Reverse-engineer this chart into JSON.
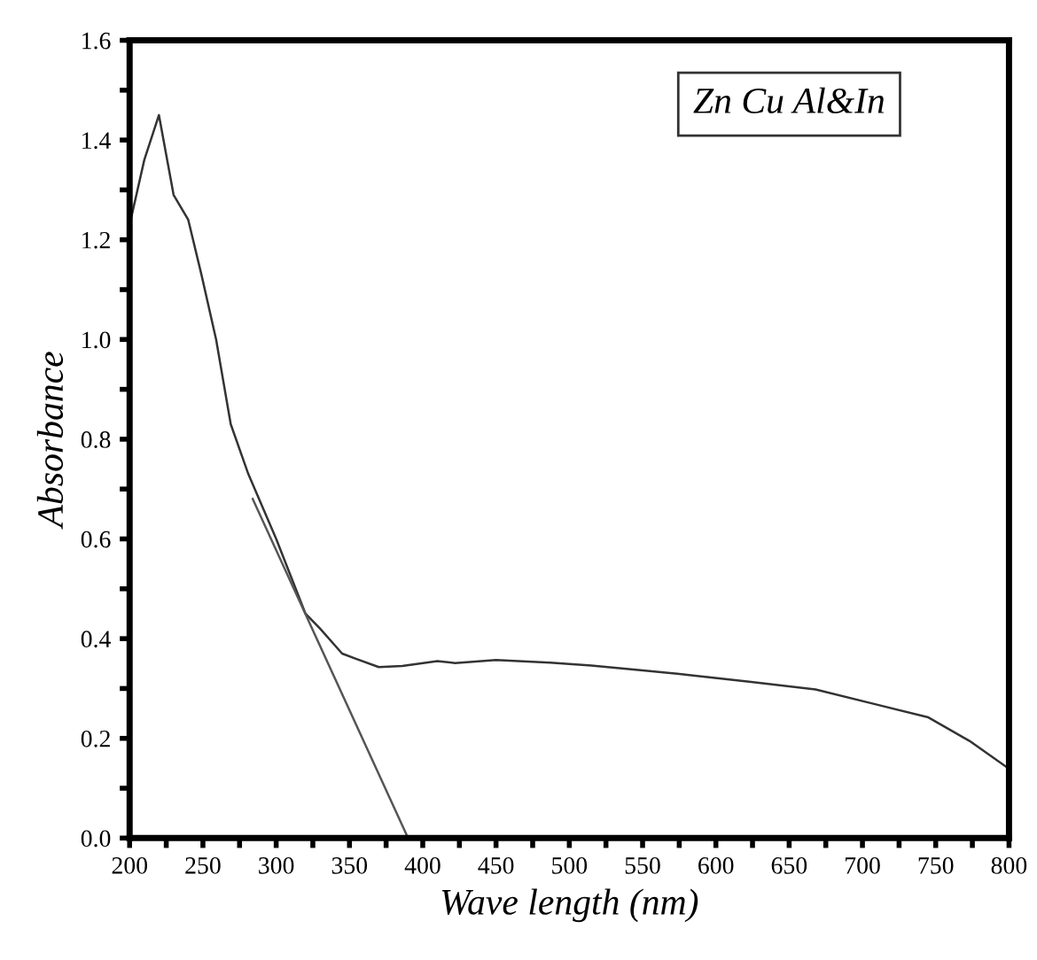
{
  "chart_data": {
    "type": "line",
    "xlabel": "Wave length (nm)",
    "ylabel": "Absorbance",
    "annotations": [
      "Zn Cu Al&In"
    ],
    "xlim": [
      200,
      800
    ],
    "ylim": [
      0,
      1.6
    ],
    "xticks": [
      200,
      {
        "value": 225,
        "label": null
      },
      250,
      {
        "value": 275,
        "label": null
      },
      300,
      {
        "value": 325,
        "label": null
      },
      350,
      {
        "value": 375,
        "label": null
      },
      400,
      {
        "value": 425,
        "label": null
      },
      450,
      {
        "value": 475,
        "label": null
      },
      500,
      {
        "value": 525,
        "label": null
      },
      550,
      {
        "value": 575,
        "label": null
      },
      600,
      {
        "value": 625,
        "label": null
      },
      650,
      {
        "value": 675,
        "label": null
      },
      700,
      {
        "value": 725,
        "label": null
      },
      750,
      {
        "value": 775,
        "label": null
      },
      800
    ],
    "yticks": [
      {
        "value": 0,
        "label": "0.0"
      },
      {
        "value": 0.1,
        "label": null
      },
      0.2,
      {
        "value": 0.3,
        "label": null
      },
      0.4,
      {
        "value": 0.5,
        "label": null
      },
      0.6,
      {
        "value": 0.7,
        "label": null
      },
      0.8,
      {
        "value": 0.9,
        "label": null
      },
      {
        "value": 1,
        "label": "1.0"
      },
      {
        "value": 1.1,
        "label": null
      },
      1.2,
      {
        "value": 1.3,
        "label": null
      },
      1.4,
      {
        "value": 1.5,
        "label": null
      },
      1.6
    ],
    "grid": false,
    "series": [
      {
        "color": "#333333",
        "x": [
          200,
          210,
          220,
          230,
          240,
          249,
          259,
          269,
          281,
          300,
          320,
          330,
          345,
          354,
          370,
          386,
          410,
          422,
          450,
          487,
          515,
          547,
          579,
          624,
          668,
          708,
          745,
          773,
          800
        ],
        "values": [
          1.23,
          1.36,
          1.45,
          1.29,
          1.24,
          1.13,
          1.0,
          0.83,
          0.73,
          0.6,
          0.45,
          0.42,
          0.37,
          0.36,
          0.343,
          0.345,
          0.355,
          0.351,
          0.357,
          0.352,
          0.346,
          0.337,
          0.328,
          0.313,
          0.298,
          0.269,
          0.242,
          0.195,
          0.139
        ]
      },
      {
        "color": "#555555",
        "x": [
          284,
          390
        ],
        "values": [
          0.68,
          0
        ]
      }
    ]
  }
}
